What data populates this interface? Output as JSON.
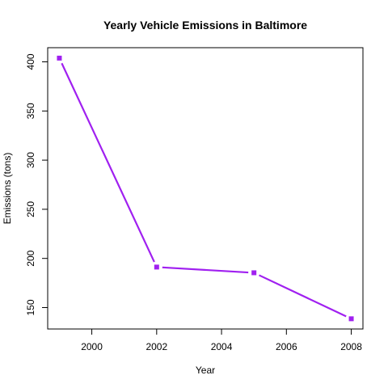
{
  "chart_data": {
    "type": "line",
    "title": "Yearly Vehicle Emissions in Baltimore",
    "xlabel": "Year",
    "ylabel": "Emissions (tons)",
    "x": [
      1999,
      2002,
      2005,
      2008
    ],
    "series": [
      {
        "values": [
          403.8,
          191.2,
          185.4,
          138.6
        ],
        "color": "#a020f0",
        "marker": "square"
      }
    ],
    "xlim": [
      1998.64,
      2008.36
    ],
    "ylim": [
      128.2,
      414.4
    ],
    "xticks": [
      2000,
      2002,
      2004,
      2006,
      2008
    ],
    "xtick_labels": [
      "2000",
      "2002",
      "2004",
      "2006",
      "2008"
    ],
    "yticks": [
      150,
      200,
      250,
      300,
      350,
      400
    ],
    "ytick_labels": [
      "150",
      "200",
      "250",
      "300",
      "350",
      "400"
    ],
    "grid": false,
    "legend": "none"
  }
}
